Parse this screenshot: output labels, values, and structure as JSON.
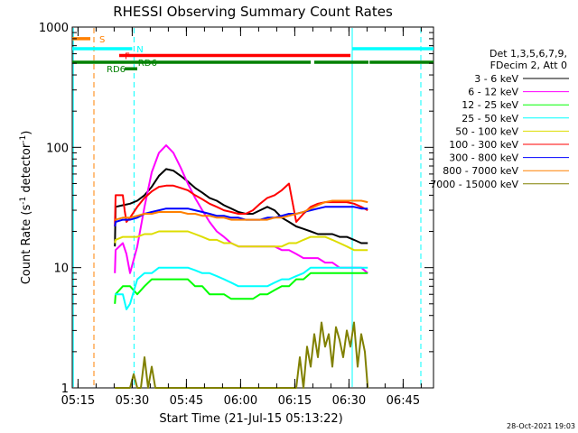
{
  "chart_data": {
    "type": "line",
    "title": "RHESSI Observing Summary Count Rates",
    "xlabel": "Start Time (21-Jul-15 05:13:22)",
    "ylabel_main": "Count Rate (s",
    "ylabel_sup1": "-1",
    "ylabel_mid": " detector",
    "ylabel_sup2": "-1",
    "ylabel_end": ")",
    "y_scale": "log",
    "ylim": [
      1,
      1000
    ],
    "xlim_minutes": [
      0,
      100
    ],
    "x_ticks": [
      {
        "label": "05:15",
        "m": 1.6
      },
      {
        "label": "05:30",
        "m": 16.6
      },
      {
        "label": "05:45",
        "m": 31.6
      },
      {
        "label": "06:00",
        "m": 46.6
      },
      {
        "label": "06:15",
        "m": 61.6
      },
      {
        "label": "06:30",
        "m": 76.6
      },
      {
        "label": "06:45",
        "m": 91.6
      }
    ],
    "y_ticks": [
      {
        "label": "1",
        "v": 1
      },
      {
        "label": "10",
        "v": 10
      },
      {
        "label": "100",
        "v": 100
      },
      {
        "label": "1000",
        "v": 1000
      }
    ],
    "legend_header": [
      "Det 1,3,5,6,7,9,",
      "FDecim 2, Att 0"
    ],
    "legend_placement": "right",
    "series": [
      {
        "name": "3 - 6 keV",
        "color": "#000000",
        "x": [
          11.8,
          12,
          14,
          16,
          18,
          20,
          22,
          24,
          26,
          28,
          30,
          32,
          34,
          36,
          38,
          40,
          42,
          44,
          46,
          48,
          50,
          52,
          54,
          56,
          58,
          60,
          62,
          64,
          66,
          68,
          70,
          72,
          74,
          76,
          78,
          80,
          81.8
        ],
        "y": [
          15,
          32,
          33,
          34,
          36,
          40,
          47,
          58,
          66,
          64,
          58,
          52,
          46,
          42,
          38,
          36,
          33,
          31,
          29,
          28,
          28,
          30,
          32,
          30,
          26,
          24,
          22,
          21,
          20,
          19,
          19,
          19,
          18,
          18,
          17,
          16,
          16
        ]
      },
      {
        "name": "6 - 12 keV",
        "color": "#ff00ff",
        "x": [
          11.8,
          12,
          14,
          15,
          16,
          18,
          20,
          22,
          24,
          26,
          28,
          30,
          32,
          34,
          36,
          38,
          40,
          42,
          44,
          46,
          48,
          50,
          52,
          54,
          56,
          58,
          60,
          62,
          64,
          66,
          68,
          70,
          72,
          74,
          76,
          78,
          80,
          81.8
        ],
        "y": [
          9,
          14,
          16,
          13,
          9,
          15,
          32,
          62,
          90,
          104,
          90,
          68,
          50,
          38,
          30,
          24,
          20,
          18,
          16,
          15,
          15,
          15,
          15,
          15,
          15,
          14,
          14,
          13,
          12,
          12,
          12,
          11,
          11,
          10,
          10,
          10,
          10,
          9
        ]
      },
      {
        "name": "12 - 25 keV",
        "color": "#00ff00",
        "x": [
          11.8,
          12,
          14,
          16,
          18,
          20,
          22,
          24,
          26,
          28,
          30,
          32,
          34,
          36,
          38,
          40,
          42,
          44,
          46,
          48,
          50,
          52,
          54,
          56,
          58,
          60,
          62,
          64,
          66,
          68,
          70,
          72,
          74,
          76,
          78,
          80,
          81.8
        ],
        "y": [
          5,
          6,
          7,
          7,
          6,
          7,
          8,
          8,
          8,
          8,
          8,
          8,
          7,
          7,
          6,
          6,
          6,
          5.5,
          5.5,
          5.5,
          5.5,
          6,
          6,
          6.5,
          7,
          7,
          8,
          8,
          9,
          9,
          9,
          9,
          9,
          9,
          9,
          9,
          9
        ]
      },
      {
        "name": "25 - 50 keV",
        "color": "#00ffff",
        "x": [
          11.8,
          12,
          14,
          15,
          16,
          18,
          20,
          22,
          24,
          26,
          28,
          30,
          32,
          34,
          36,
          38,
          40,
          42,
          44,
          46,
          48,
          50,
          52,
          54,
          56,
          58,
          60,
          62,
          64,
          66,
          68,
          70,
          72,
          74,
          76,
          78,
          80,
          81.8
        ],
        "y": [
          6,
          6,
          6,
          4.5,
          5,
          8,
          9,
          9,
          10,
          10,
          10,
          10,
          10,
          9.5,
          9,
          9,
          8.5,
          8,
          7.5,
          7,
          7,
          7,
          7,
          7,
          7.5,
          8,
          8,
          8.5,
          9,
          10,
          10,
          10,
          10,
          10,
          10,
          10,
          10,
          10
        ]
      },
      {
        "name": "50 - 100 keV",
        "color": "#dddd00",
        "x": [
          11.8,
          12,
          14,
          16,
          18,
          20,
          22,
          24,
          26,
          28,
          30,
          32,
          34,
          36,
          38,
          40,
          42,
          44,
          46,
          48,
          50,
          52,
          54,
          56,
          58,
          60,
          62,
          64,
          66,
          68,
          70,
          72,
          74,
          76,
          78,
          80,
          81.8
        ],
        "y": [
          16,
          17,
          18,
          18,
          18,
          19,
          19,
          20,
          20,
          20,
          20,
          20,
          19,
          18,
          17,
          17,
          16,
          16,
          15,
          15,
          15,
          15,
          15,
          15,
          15,
          16,
          16,
          17,
          18,
          18,
          18,
          17,
          16,
          15,
          14,
          14,
          14
        ]
      },
      {
        "name": "100 - 300 keV",
        "color": "#ff0000",
        "x": [
          11.8,
          12,
          14,
          14.5,
          15,
          16,
          18,
          20,
          22,
          24,
          26,
          28,
          30,
          32,
          34,
          36,
          38,
          40,
          42,
          44,
          46,
          48,
          50,
          52,
          54,
          56,
          58,
          60,
          62,
          64,
          66,
          68,
          70,
          72,
          74,
          76,
          78,
          80,
          81.8
        ],
        "y": [
          22,
          40,
          40,
          30,
          24,
          26,
          32,
          38,
          43,
          47,
          48,
          48,
          46,
          44,
          40,
          37,
          34,
          32,
          30,
          29,
          28,
          28,
          30,
          34,
          38,
          40,
          44,
          50,
          24,
          28,
          32,
          34,
          35,
          35,
          35,
          35,
          34,
          32,
          30
        ]
      },
      {
        "name": "300 - 800 keV",
        "color": "#0000ff",
        "x": [
          11.8,
          12,
          14,
          16,
          18,
          20,
          22,
          24,
          26,
          28,
          30,
          32,
          34,
          36,
          38,
          40,
          42,
          44,
          46,
          48,
          50,
          52,
          54,
          56,
          58,
          60,
          62,
          64,
          66,
          68,
          70,
          72,
          74,
          76,
          78,
          80,
          81.8
        ],
        "y": [
          22,
          24,
          25,
          25,
          26,
          28,
          29,
          30,
          31,
          31,
          31,
          31,
          30,
          29,
          28,
          27,
          27,
          26,
          26,
          25,
          25,
          25,
          26,
          26,
          27,
          28,
          28,
          29,
          30,
          31,
          32,
          32,
          32,
          32,
          32,
          31,
          31
        ]
      },
      {
        "name": "800 - 7000 keV",
        "color": "#ff8000",
        "x": [
          11.8,
          12,
          14,
          16,
          18,
          20,
          22,
          24,
          26,
          28,
          30,
          32,
          34,
          36,
          38,
          40,
          42,
          44,
          46,
          48,
          50,
          52,
          54,
          56,
          58,
          60,
          62,
          64,
          66,
          68,
          70,
          72,
          74,
          76,
          78,
          80,
          81.8
        ],
        "y": [
          25,
          25,
          26,
          26,
          27,
          28,
          28,
          29,
          29,
          29,
          29,
          28,
          28,
          27,
          27,
          26,
          26,
          25,
          25,
          25,
          25,
          25,
          25,
          26,
          26,
          27,
          28,
          29,
          31,
          33,
          35,
          36,
          36,
          36,
          36,
          36,
          35
        ]
      },
      {
        "name": "7000 - 15000 keV",
        "color": "#808000",
        "x": [
          11.8,
          12,
          14,
          16,
          17,
          18,
          19,
          20,
          21,
          22,
          23,
          24,
          26,
          28,
          30,
          32,
          40,
          50,
          60,
          62,
          63,
          64,
          65,
          66,
          67,
          68,
          69,
          70,
          71,
          72,
          73,
          74,
          75,
          76,
          77,
          78,
          79,
          80,
          81,
          81.8
        ],
        "y": [
          1,
          1,
          1,
          1,
          1.3,
          1,
          1,
          1.8,
          1,
          1.5,
          1,
          1,
          1,
          1,
          1,
          1,
          1,
          1,
          1,
          1,
          1.8,
          1,
          2.2,
          1.5,
          2.8,
          1.8,
          3.5,
          2.2,
          2.8,
          1.5,
          3.2,
          2.5,
          1.8,
          3,
          2.2,
          3.5,
          1.5,
          2.8,
          2,
          1
        ]
      }
    ],
    "annotations": [
      {
        "label": "S",
        "color": "#ff8000"
      },
      {
        "label": "N",
        "color": "#00ffff"
      },
      {
        "label": "F",
        "color": "#ff0000"
      },
      {
        "label": "RD6",
        "color": "#008000"
      },
      {
        "label": "RD6",
        "color": "#008000"
      }
    ],
    "flag_bars": [
      {
        "flag": "S",
        "color": "#ff8000",
        "value": 800,
        "segments": [
          [
            0,
            5
          ]
        ]
      },
      {
        "flag": "N",
        "color": "#00ffff",
        "value": 660,
        "segments": [
          [
            0,
            16.6
          ],
          [
            77.5,
            100
          ]
        ]
      },
      {
        "flag": "F",
        "color": "#ff0000",
        "value": 580,
        "segments": [
          [
            13,
            77
          ]
        ]
      },
      {
        "flag": "RD6",
        "color": "#008000",
        "value": 510,
        "segments": [
          [
            0,
            66
          ],
          [
            67,
            82
          ],
          [
            82.3,
            100
          ]
        ]
      },
      {
        "flag": "RD6",
        "color": "#008000",
        "value": 450,
        "segments": [
          [
            14.5,
            18
          ]
        ]
      }
    ],
    "vertical_lines": [
      {
        "m": 6.0,
        "color": "#ff8000",
        "dashed": true
      },
      {
        "m": 17.1,
        "color": "#00ffff",
        "dashed": true
      },
      {
        "m": 77.5,
        "color": "#00ffff",
        "dashed": false
      },
      {
        "m": 96.5,
        "color": "#00ffff",
        "dashed": true
      },
      {
        "m": 0.3,
        "color": "#00ffff",
        "dashed": false
      }
    ],
    "timestamp": "28-Oct-2021 19:03"
  }
}
